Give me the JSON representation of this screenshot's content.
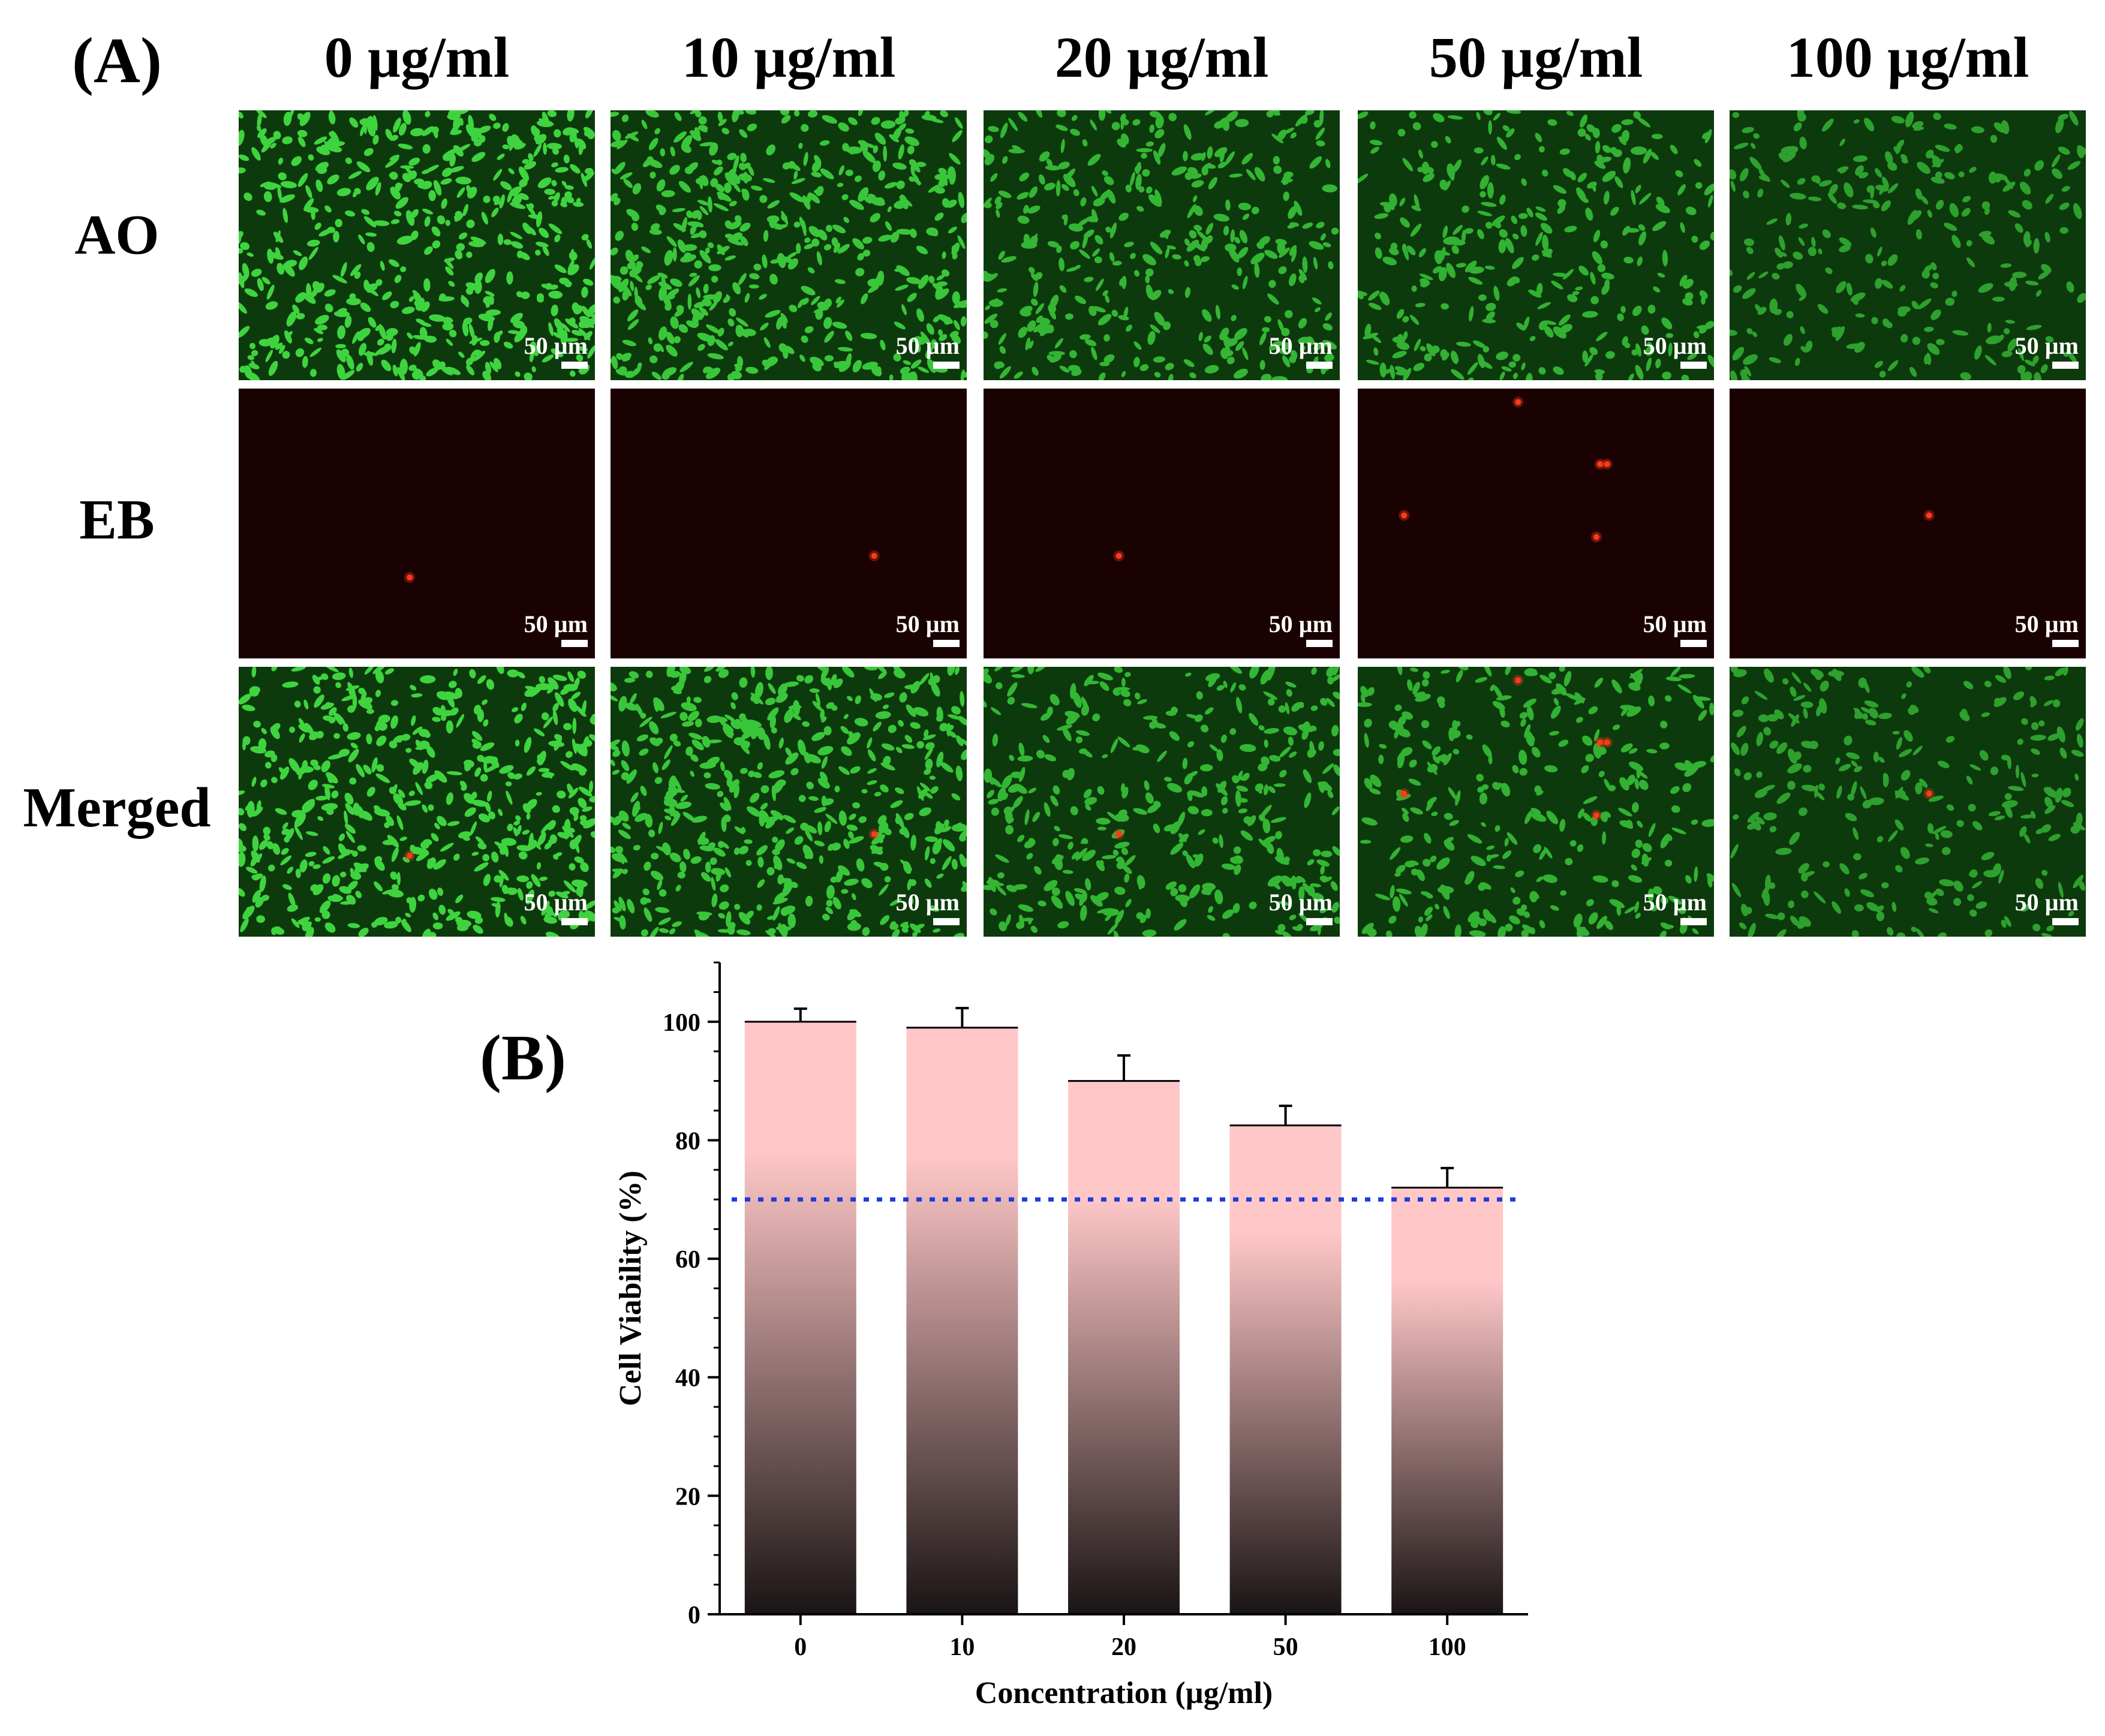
{
  "panel_a": {
    "label": "(A)",
    "columns": [
      "0 µg/ml",
      "10 µg/ml",
      "20 µg/ml",
      "50 µg/ml",
      "100 µg/ml"
    ],
    "rows": [
      "AO",
      "EB",
      "Merged"
    ],
    "scale_bar_label": "50 µm",
    "colors": {
      "ao_cell": "#3fd43f",
      "ao_bg": "#0c3a0c",
      "eb_bg": "#1a0202",
      "eb_cell": "#ff3a1a"
    }
  },
  "chart_data": {
    "type": "bar",
    "panel_label": "(B)",
    "categories": [
      "0",
      "10",
      "20",
      "50",
      "100"
    ],
    "values": [
      100,
      99,
      90,
      82.5,
      72
    ],
    "errors": [
      2.2,
      3.3,
      4.3,
      3.3,
      3.3
    ],
    "xlabel": "Concentration (µg/ml)",
    "ylabel": "Cell Viability (%)",
    "ylim": [
      0,
      110
    ],
    "yticks": [
      "0",
      "20",
      "40",
      "60",
      "80",
      "100"
    ],
    "reference_line": 70,
    "bar_gradient": [
      "#ffc7c7",
      "#1a1414"
    ],
    "reference_line_color": "#1d3bdc",
    "grid": false
  }
}
